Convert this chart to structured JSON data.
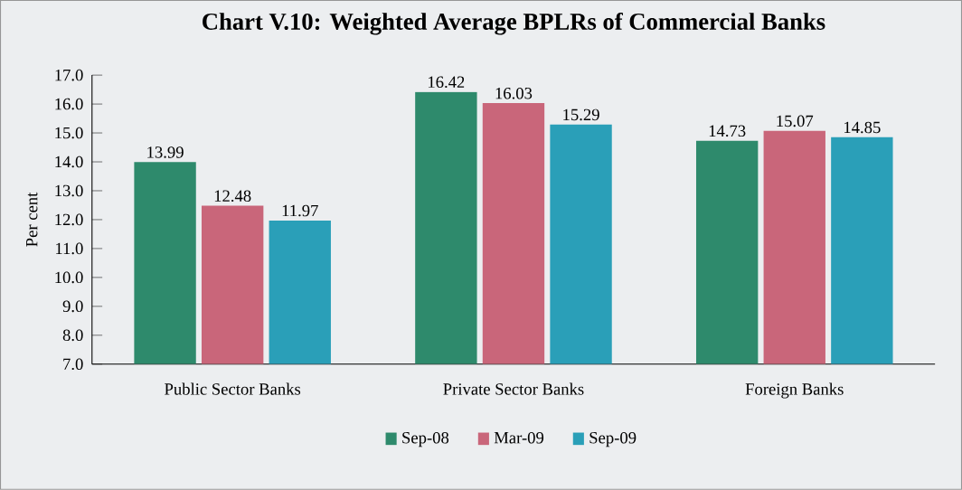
{
  "chart_data": {
    "type": "bar",
    "title": "Chart V.10: Weighted Average BPLRs of Commercial Banks",
    "ylabel": "Per cent",
    "categories": [
      "Public Sector Banks",
      "Private Sector Banks",
      "Foreign Banks"
    ],
    "series": [
      {
        "name": "Sep-08",
        "color": "#2e8a6c",
        "values": [
          13.99,
          16.42,
          14.73
        ],
        "value_labels": [
          "13.99",
          "16.42",
          "14.73"
        ]
      },
      {
        "name": "Mar-09",
        "color": "#c9667a",
        "values": [
          12.48,
          16.03,
          15.07
        ],
        "value_labels": [
          "12.48",
          "16.03",
          "15.07"
        ]
      },
      {
        "name": "Sep-09",
        "color": "#2a9fb8",
        "values": [
          11.97,
          15.29,
          14.85
        ],
        "value_labels": [
          "11.97",
          "15.29",
          "14.85"
        ]
      }
    ],
    "ylim": [
      7,
      17
    ],
    "yticks": [
      {
        "value": 7,
        "label": "7.0"
      },
      {
        "value": 8,
        "label": "8.0"
      },
      {
        "value": 9,
        "label": "9.0"
      },
      {
        "value": 10,
        "label": "10.0"
      },
      {
        "value": 11,
        "label": "11.0"
      },
      {
        "value": 12,
        "label": "12.0"
      },
      {
        "value": 13,
        "label": "13.0"
      },
      {
        "value": 14,
        "label": "14.0"
      },
      {
        "value": 15,
        "label": "15.0"
      },
      {
        "value": 16,
        "label": "16.0"
      },
      {
        "value": 17,
        "label": "17.0"
      }
    ],
    "grid": false,
    "legend": "bottom"
  }
}
